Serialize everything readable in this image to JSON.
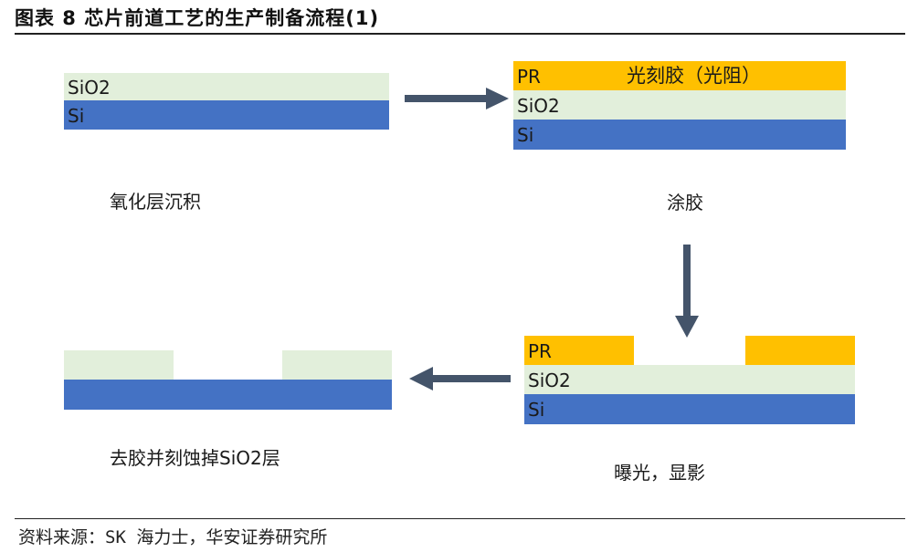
{
  "title": "图表 8 芯片前道工艺的生产制备流程(1)",
  "layer_labels": {
    "pr": "PR",
    "sio2": "SiO2",
    "si": "Si",
    "photoresist": "光刻胶（光阻）"
  },
  "steps": [
    {
      "caption": "氧化层沉积"
    },
    {
      "caption": "涂胶"
    },
    {
      "caption": "曝光，显影"
    },
    {
      "caption": "去胶并刻蚀掉SiO2层"
    }
  ],
  "source": "资料来源：SK 海力士，华安证券研究所",
  "colors": {
    "sio2": "#e2efdb",
    "si": "#4472c4",
    "pr": "#ffc000",
    "arrow": "#44546a"
  }
}
